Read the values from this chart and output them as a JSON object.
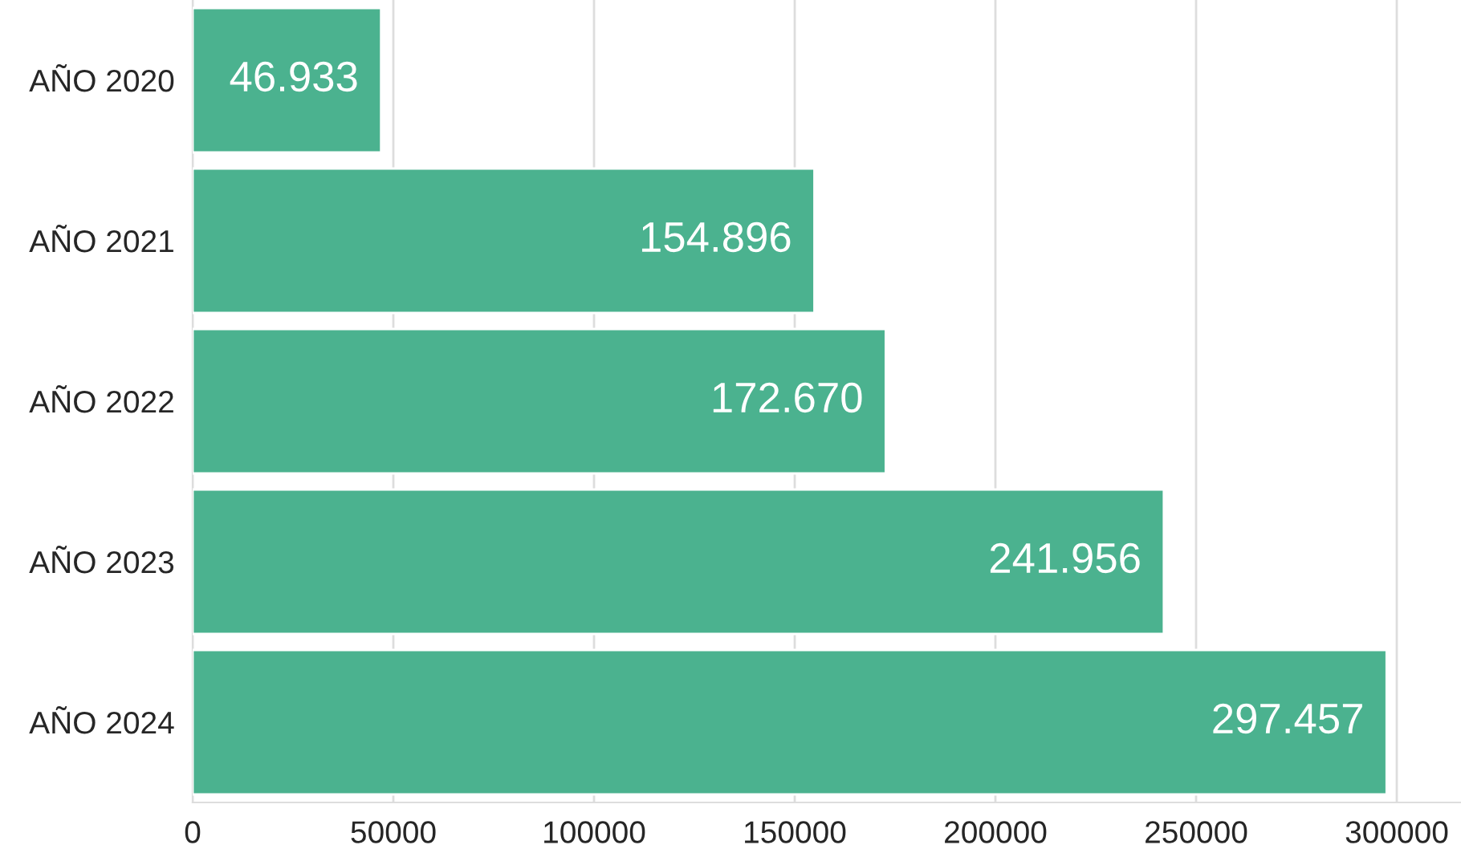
{
  "chart_data": {
    "type": "bar",
    "orientation": "horizontal",
    "categories": [
      "AÑO 2020",
      "AÑO 2021",
      "AÑO 2022",
      "AÑO 2023",
      "AÑO 2024"
    ],
    "values": [
      46933,
      154896,
      172670,
      241956,
      297457
    ],
    "value_labels": [
      "46.933",
      "154.896",
      "172.670",
      "241.956",
      "297.457"
    ],
    "color": "#4bb28f",
    "xlim": [
      0,
      316000
    ],
    "xticks": [
      0,
      50000,
      100000,
      150000,
      200000,
      250000,
      300000
    ],
    "grid": "x"
  }
}
